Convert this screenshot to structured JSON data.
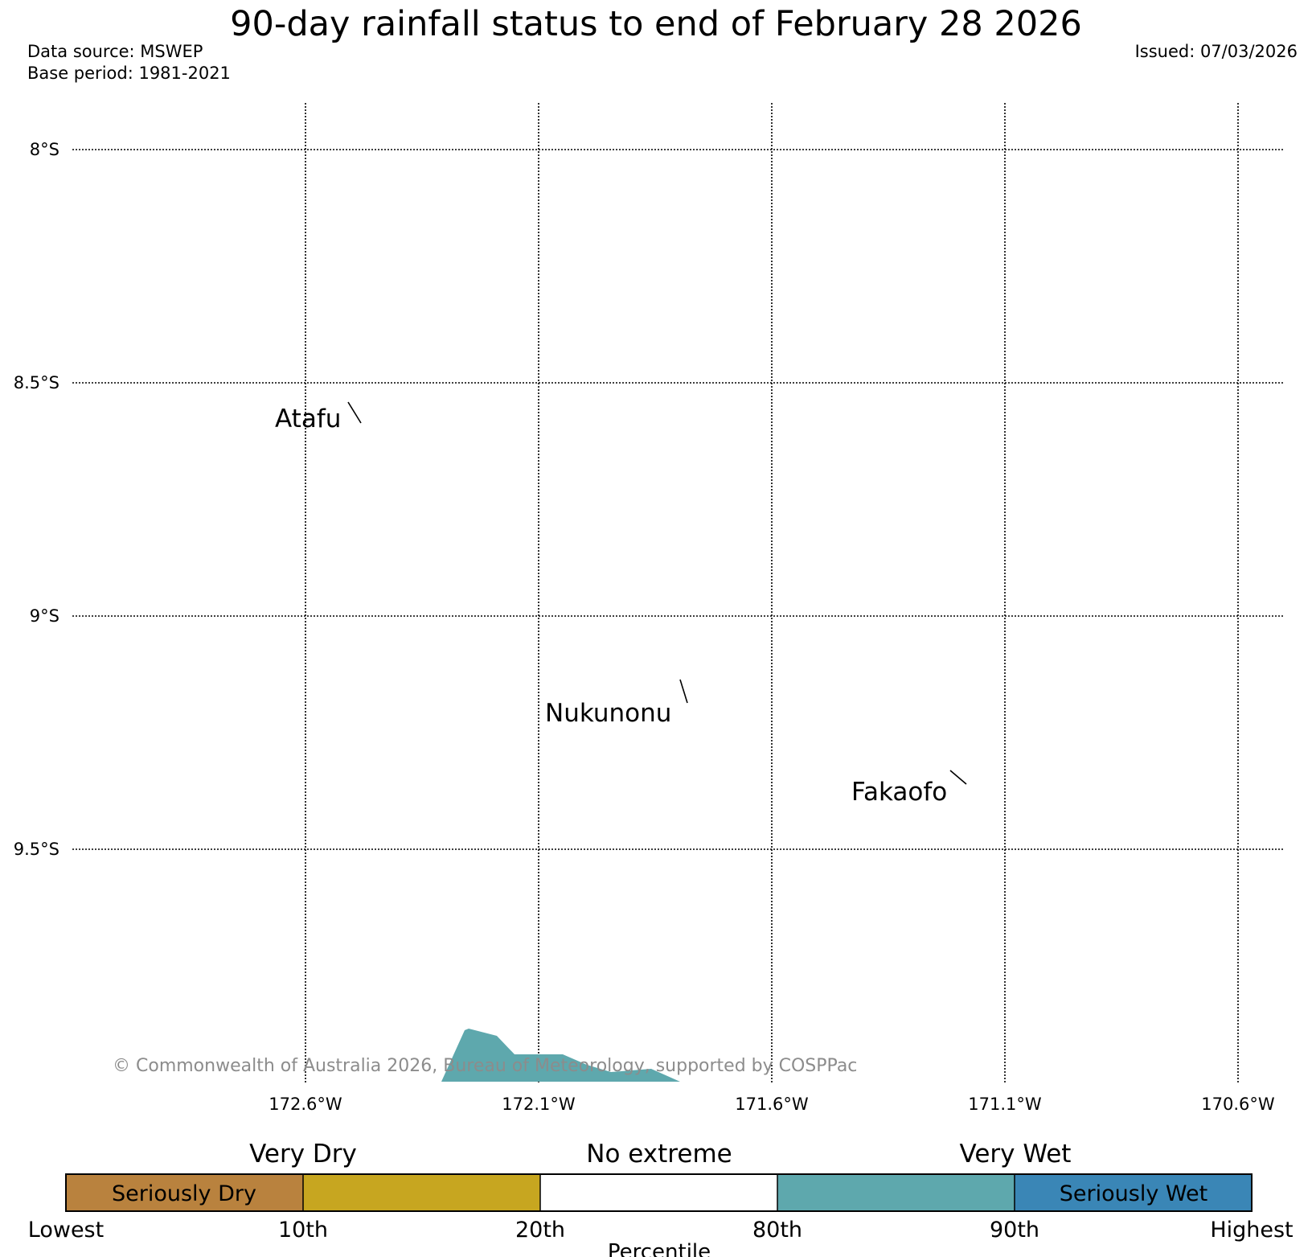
{
  "header": {
    "title": "90-day rainfall status to end of February 28 2026",
    "data_source": "Data source: MSWEP",
    "base_period": "Base period: 1981-2021",
    "issued": "Issued: 07/03/2026"
  },
  "map": {
    "lat_labels": [
      "8°S",
      "8.5°S",
      "9°S",
      "9.5°S"
    ],
    "lon_labels": [
      "172.6°W",
      "172.1°W",
      "171.6°W",
      "171.1°W",
      "170.6°W"
    ],
    "places": [
      {
        "name": "Atafu"
      },
      {
        "name": "Nukunonu"
      },
      {
        "name": "Fakaofo"
      }
    ],
    "wet_area_color": "#5ea8ad",
    "copyright": "© Commonwealth of Australia 2026, Bureau of Meteorology, supported by COSPPac"
  },
  "legend": {
    "group_labels": [
      "Very Dry",
      "No extreme",
      "Very Wet"
    ],
    "segments": [
      {
        "label": "Seriously Dry",
        "color": "#b9823e"
      },
      {
        "label": "",
        "color": "#c7a620"
      },
      {
        "label": "",
        "color": "#ffffff"
      },
      {
        "label": "",
        "color": "#5ea8ad"
      },
      {
        "label": "Seriously Wet",
        "color": "#3a86b6"
      }
    ],
    "ticks": [
      "Lowest",
      "10th",
      "20th",
      "80th",
      "90th",
      "Highest"
    ],
    "axis_label": "Percentile"
  }
}
